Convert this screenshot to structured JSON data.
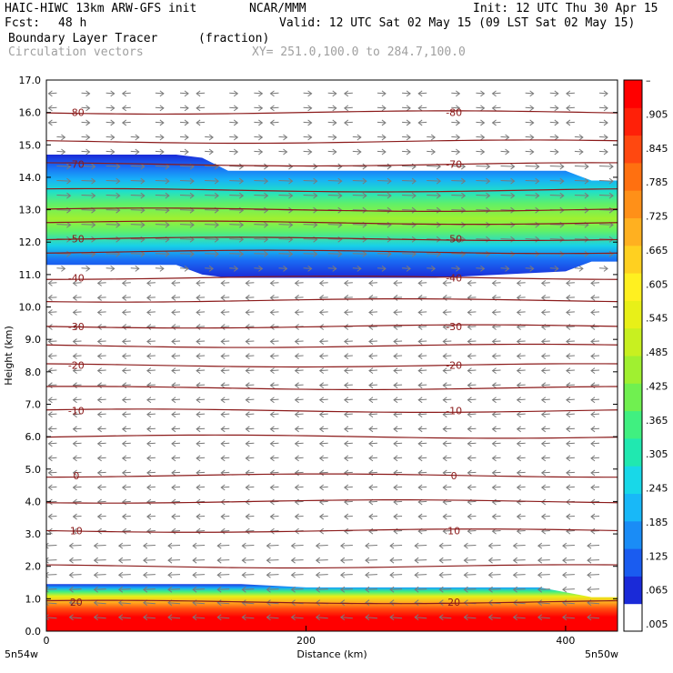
{
  "header": {
    "model": "HAIC-HIWC 13km ARW-GFS init",
    "org": "NCAR/MMM",
    "init": "Init: 12 UTC Thu 30 Apr 15",
    "fcst_label": "Fcst:",
    "fcst_value": "48 h",
    "valid": "Valid: 12 UTC Sat 02 May 15 (09 LST Sat 02 May 15)",
    "field": "Boundary Layer Tracer",
    "units": "(fraction)",
    "vectors": "Circulation vectors",
    "xy": "XY= 251.0,100.0 to 284.7,100.0"
  },
  "colors": {
    "ramp": [
      "#1a2ad8",
      "#1a5cf0",
      "#1a8cf6",
      "#18b8f8",
      "#18d8e8",
      "#20e8b0",
      "#40f080",
      "#70f050",
      "#a0f030",
      "#c8f020",
      "#e8f018",
      "#fff020",
      "#ffd020",
      "#ffb020",
      "#ff9018",
      "#ff7010",
      "#ff4810",
      "#ff2008",
      "#ff0000"
    ],
    "contour": "#8b1a1a",
    "vector": "#7a7a7a"
  },
  "chart_data": {
    "type": "heatmap",
    "title": "Boundary Layer Tracer (fraction)",
    "xlabel": "Distance (km)",
    "ylabel": "Height (km)",
    "xlim": [
      0,
      440
    ],
    "ylim": [
      0,
      17
    ],
    "x_ticks": [
      "0",
      "200",
      "400"
    ],
    "x_tick_values": [
      0,
      200,
      400
    ],
    "x_endpoints": [
      "5n54w",
      "5n50w"
    ],
    "y_ticks": [
      "0.0",
      "1.0",
      "2.0",
      "3.0",
      "4.0",
      "5.0",
      "6.0",
      "7.0",
      "8.0",
      "9.0",
      "10.0",
      "11.0",
      "12.0",
      "13.0",
      "14.0",
      "15.0",
      "16.0",
      "17.0"
    ],
    "colorbar_labels": [
      ".005",
      ".065",
      ".125",
      ".185",
      ".245",
      ".305",
      ".365",
      ".425",
      ".485",
      ".545",
      ".605",
      ".665",
      ".725",
      ".785",
      ".845",
      ".905",
      "–"
    ],
    "upper_layer": {
      "x": [
        0,
        100,
        120,
        140,
        180,
        300,
        400,
        420,
        440
      ],
      "top": [
        14.7,
        14.7,
        14.6,
        14.2,
        14.2,
        14.2,
        14.2,
        13.9,
        13.9
      ],
      "bottom": [
        11.3,
        11.3,
        11.0,
        10.9,
        10.9,
        10.9,
        11.1,
        11.4,
        11.4
      ]
    },
    "lower_layer": {
      "x": [
        0,
        150,
        200,
        300,
        380,
        420,
        440
      ],
      "top": [
        1.45,
        1.45,
        1.35,
        1.35,
        1.35,
        1.05,
        1.05
      ]
    },
    "temperature_contours": [
      {
        "label": "-80",
        "level": -80,
        "height": 16.0
      },
      {
        "label": "-70",
        "level": -70,
        "height": 14.4
      },
      {
        "label": "-50",
        "level": -50,
        "height": 12.1
      },
      {
        "label": "-40",
        "level": -40,
        "height": 10.9
      },
      {
        "label": "-30",
        "level": -30,
        "height": 9.4
      },
      {
        "label": "-20",
        "level": -20,
        "height": 8.2
      },
      {
        "label": "-10",
        "level": -10,
        "height": 6.8
      },
      {
        "label": "0",
        "level": 0,
        "height": 4.8
      },
      {
        "label": "10",
        "level": 10,
        "height": 3.1
      },
      {
        "label": "20",
        "level": 20,
        "height": 0.9
      }
    ],
    "extra_contour_heights": [
      15.1,
      13.6,
      13.0,
      12.6,
      11.7,
      10.2,
      8.8,
      7.5,
      6.0,
      4.0,
      2.0
    ]
  }
}
